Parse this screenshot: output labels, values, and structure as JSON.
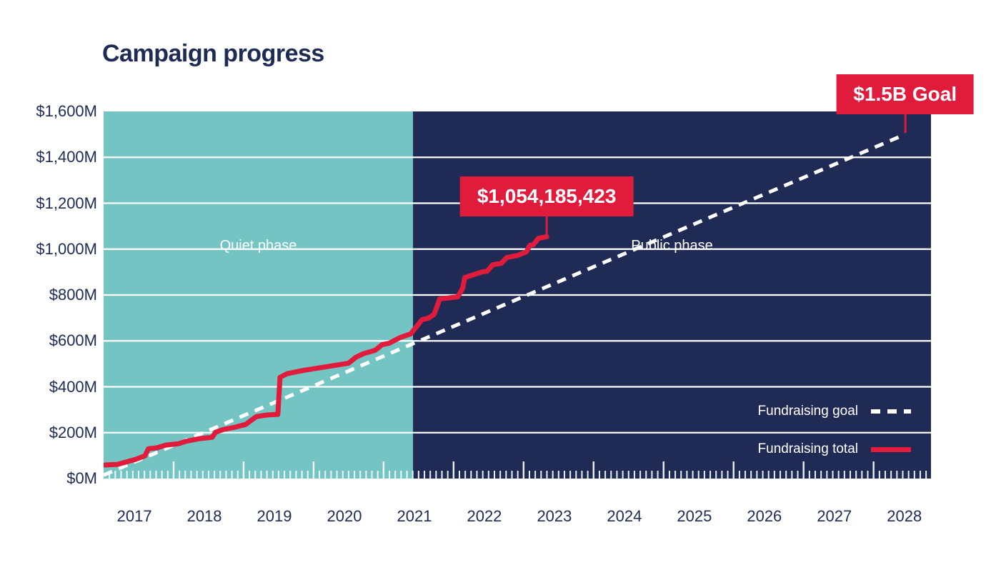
{
  "title": "Campaign progress",
  "colors": {
    "navy": "#1f2b55",
    "teal": "#74c4c3",
    "red": "#e01b3c",
    "white": "#ffffff",
    "text_navy": "#1e2b54"
  },
  "chart_data": {
    "type": "line",
    "title": "Campaign progress",
    "x_domain": [
      2017.0,
      2028.82
    ],
    "y_domain": [
      0,
      1600
    ],
    "grid": "horizontal-white",
    "y_ticks": [
      {
        "value": 0,
        "label": "$0M"
      },
      {
        "value": 200,
        "label": "$200M"
      },
      {
        "value": 400,
        "label": "$400M"
      },
      {
        "value": 600,
        "label": "$600M"
      },
      {
        "value": 800,
        "label": "$800M"
      },
      {
        "value": 1000,
        "label": "$1,000M"
      },
      {
        "value": 1200,
        "label": "$1,200M"
      },
      {
        "value": 1400,
        "label": "$1,400M"
      },
      {
        "value": 1600,
        "label": "$1,600M"
      }
    ],
    "x_ticks": [
      {
        "year": 2017,
        "label": "2017"
      },
      {
        "year": 2018,
        "label": "2018"
      },
      {
        "year": 2019,
        "label": "2019"
      },
      {
        "year": 2020,
        "label": "2020"
      },
      {
        "year": 2021,
        "label": "2021"
      },
      {
        "year": 2022,
        "label": "2022"
      },
      {
        "year": 2023,
        "label": "2023"
      },
      {
        "year": 2024,
        "label": "2024"
      },
      {
        "year": 2025,
        "label": "2025"
      },
      {
        "year": 2026,
        "label": "2026"
      },
      {
        "year": 2027,
        "label": "2027"
      },
      {
        "year": 2028,
        "label": "2028"
      }
    ],
    "minor_ticks": "monthly",
    "phases": [
      {
        "name": "Quiet phase",
        "start": 2017.0,
        "end": 2021.42,
        "color_key": "teal"
      },
      {
        "name": "Public phase",
        "start": 2021.42,
        "end": 2028.82,
        "color_key": "navy"
      }
    ],
    "series": [
      {
        "name": "Fundraising goal",
        "line_style": "dashed",
        "color_key": "white",
        "points": [
          [
            2017.0,
            15
          ],
          [
            2028.45,
            1500
          ]
        ]
      },
      {
        "name": "Fundraising total",
        "line_style": "solid",
        "color_key": "red",
        "points": [
          [
            2017.02,
            59
          ],
          [
            2017.2,
            62
          ],
          [
            2017.46,
            84
          ],
          [
            2017.59,
            99
          ],
          [
            2017.64,
            130
          ],
          [
            2017.76,
            134
          ],
          [
            2017.89,
            146
          ],
          [
            2018.07,
            152
          ],
          [
            2018.17,
            162
          ],
          [
            2018.37,
            174
          ],
          [
            2018.55,
            180
          ],
          [
            2018.6,
            202
          ],
          [
            2018.71,
            214
          ],
          [
            2018.88,
            224
          ],
          [
            2019.03,
            236
          ],
          [
            2019.18,
            270
          ],
          [
            2019.33,
            277
          ],
          [
            2019.49,
            280
          ],
          [
            2019.52,
            441
          ],
          [
            2019.62,
            457
          ],
          [
            2019.86,
            472
          ],
          [
            2020.2,
            488
          ],
          [
            2020.5,
            503
          ],
          [
            2020.6,
            528
          ],
          [
            2020.71,
            544
          ],
          [
            2020.88,
            559
          ],
          [
            2020.98,
            584
          ],
          [
            2021.08,
            590
          ],
          [
            2021.24,
            615
          ],
          [
            2021.39,
            631
          ],
          [
            2021.42,
            643
          ],
          [
            2021.55,
            693
          ],
          [
            2021.64,
            699
          ],
          [
            2021.72,
            715
          ],
          [
            2021.77,
            755
          ],
          [
            2021.8,
            783
          ],
          [
            2021.89,
            786
          ],
          [
            2022.06,
            792
          ],
          [
            2022.13,
            830
          ],
          [
            2022.16,
            876
          ],
          [
            2022.26,
            886
          ],
          [
            2022.41,
            901
          ],
          [
            2022.48,
            904
          ],
          [
            2022.56,
            932
          ],
          [
            2022.68,
            938
          ],
          [
            2022.76,
            963
          ],
          [
            2022.92,
            973
          ],
          [
            2023.04,
            988
          ],
          [
            2023.09,
            1016
          ],
          [
            2023.14,
            1019
          ],
          [
            2023.21,
            1047
          ],
          [
            2023.33,
            1054
          ]
        ]
      }
    ],
    "annotations": [
      {
        "label": "$1,054,185,423",
        "attach": [
          2023.33,
          1054
        ]
      },
      {
        "label": "$1.5B Goal",
        "attach": [
          2028.45,
          1500
        ]
      }
    ],
    "legend": {
      "position": "bottom-right",
      "entries": [
        "Fundraising goal",
        "Fundraising total"
      ]
    }
  }
}
